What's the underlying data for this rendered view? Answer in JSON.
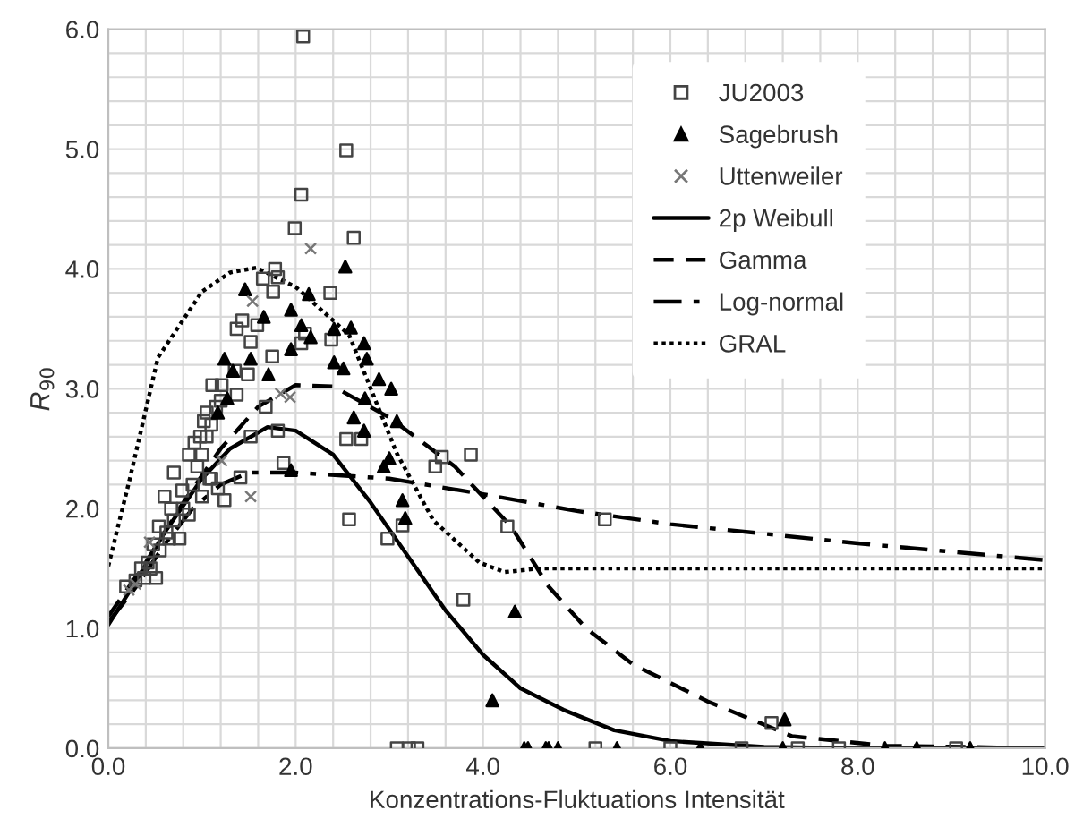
{
  "chart_data": {
    "type": "scatter",
    "xlabel": "Konzentrations-Fluktuations Intensität",
    "ylabel": "R$_{90}$",
    "xlim": [
      0,
      10
    ],
    "ylim": [
      0,
      6
    ],
    "xticks": [
      {
        "value": 0,
        "label": "0.0"
      },
      {
        "value": 0.4,
        "label": null
      },
      {
        "value": 0.8,
        "label": null
      },
      {
        "value": 1.2,
        "label": null
      },
      {
        "value": 1.6,
        "label": null
      },
      {
        "value": 2,
        "label": "2.0"
      },
      {
        "value": 2.4,
        "label": null
      },
      {
        "value": 2.8,
        "label": null
      },
      {
        "value": 3.2,
        "label": null
      },
      {
        "value": 3.6,
        "label": null
      },
      {
        "value": 4,
        "label": "4.0"
      },
      {
        "value": 4.4,
        "label": null
      },
      {
        "value": 4.8,
        "label": null
      },
      {
        "value": 5.2,
        "label": null
      },
      {
        "value": 5.6,
        "label": null
      },
      {
        "value": 6,
        "label": "6.0"
      },
      {
        "value": 6.4,
        "label": null
      },
      {
        "value": 6.8,
        "label": null
      },
      {
        "value": 7.2,
        "label": null
      },
      {
        "value": 7.6,
        "label": null
      },
      {
        "value": 8,
        "label": "8.0"
      },
      {
        "value": 8.4,
        "label": null
      },
      {
        "value": 8.8,
        "label": null
      },
      {
        "value": 9.2,
        "label": null
      },
      {
        "value": 9.6,
        "label": null
      },
      {
        "value": 10,
        "label": "10.0"
      }
    ],
    "yticks": [
      {
        "value": 0,
        "label": "0.0"
      },
      {
        "value": 0.2,
        "label": null
      },
      {
        "value": 0.4,
        "label": null
      },
      {
        "value": 0.6,
        "label": null
      },
      {
        "value": 0.8,
        "label": null
      },
      {
        "value": 1,
        "label": "1.0"
      },
      {
        "value": 1.2,
        "label": null
      },
      {
        "value": 1.4,
        "label": null
      },
      {
        "value": 1.6,
        "label": null
      },
      {
        "value": 1.8,
        "label": null
      },
      {
        "value": 2,
        "label": "2.0"
      },
      {
        "value": 2.2,
        "label": null
      },
      {
        "value": 2.4,
        "label": null
      },
      {
        "value": 2.6,
        "label": null
      },
      {
        "value": 2.8,
        "label": null
      },
      {
        "value": 3,
        "label": "3.0"
      },
      {
        "value": 3.2,
        "label": null
      },
      {
        "value": 3.4,
        "label": null
      },
      {
        "value": 3.6,
        "label": null
      },
      {
        "value": 3.8,
        "label": null
      },
      {
        "value": 4,
        "label": "4.0"
      },
      {
        "value": 4.2,
        "label": null
      },
      {
        "value": 4.4,
        "label": null
      },
      {
        "value": 4.6,
        "label": null
      },
      {
        "value": 4.8,
        "label": null
      },
      {
        "value": 5,
        "label": "5.0"
      },
      {
        "value": 5.2,
        "label": null
      },
      {
        "value": 5.4,
        "label": null
      },
      {
        "value": 5.6,
        "label": null
      },
      {
        "value": 5.8,
        "label": null
      },
      {
        "value": 6,
        "label": "6.0"
      }
    ],
    "grid": true,
    "legend": "top right",
    "series": [
      {
        "name": "JU2003",
        "marker": "square",
        "color": "#444444",
        "x": [
          2.08,
          2.54,
          2.06,
          1.99,
          2.62,
          1.78,
          1.81,
          1.76,
          1.65,
          2.37,
          1.59,
          1.43,
          1.37,
          1.75,
          1.52,
          1.49,
          1.35,
          2.1,
          2.38,
          2.06,
          1.11,
          1.21,
          1.37,
          1.05,
          1.02,
          1.68,
          1.52,
          1.81,
          2.54,
          2.7,
          1.87,
          1.41,
          1.24,
          1.17,
          1.08,
          0.7,
          0.92,
          0.86,
          0.98,
          3.56,
          3.87,
          3.49,
          4.26,
          2.57,
          2.98,
          3.14,
          3.79,
          3.08,
          3.21,
          3.3,
          0.76,
          0.67,
          0.54,
          0.48,
          0.38,
          0.51,
          0.29,
          0.19,
          0.86,
          0.79,
          0.6,
          0.35,
          0.42,
          0.55,
          0.62,
          0.7,
          0.8,
          0.9,
          0.95,
          1.0,
          1.05,
          1.1,
          1.15,
          1.2,
          1.0,
          1.1,
          0.45,
          0.65,
          5.3,
          7.08,
          5.2,
          6.0,
          6.76,
          7.36,
          7.8,
          9.05
        ],
        "values": [
          5.94,
          4.99,
          4.62,
          4.34,
          4.26,
          4.0,
          3.93,
          3.81,
          3.92,
          3.8,
          3.53,
          3.57,
          3.5,
          3.27,
          3.39,
          3.12,
          3.15,
          3.46,
          3.41,
          3.38,
          3.03,
          3.03,
          2.95,
          2.8,
          2.73,
          2.85,
          2.6,
          2.65,
          2.58,
          2.58,
          2.38,
          2.26,
          2.07,
          2.17,
          2.25,
          2.3,
          2.55,
          2.45,
          2.6,
          2.43,
          2.45,
          2.35,
          1.85,
          1.91,
          1.75,
          1.86,
          1.24,
          0,
          0,
          0,
          1.75,
          2.0,
          1.85,
          1.7,
          1.42,
          1.42,
          1.4,
          1.35,
          1.95,
          2.15,
          2.1,
          1.5,
          1.55,
          1.65,
          1.8,
          1.9,
          2.0,
          2.2,
          2.35,
          2.45,
          2.6,
          2.7,
          2.85,
          2.9,
          2.1,
          2.25,
          1.5,
          1.75,
          1.91,
          0.21,
          0,
          0,
          0,
          0,
          0,
          0
        ]
      },
      {
        "name": "Sagebrush",
        "marker": "triangle",
        "color": "#000000",
        "x": [
          2.53,
          1.46,
          1.66,
          2.14,
          1.95,
          2.06,
          2.16,
          2.41,
          2.59,
          2.73,
          2.76,
          1.24,
          1.33,
          1.52,
          1.95,
          2.41,
          2.51,
          2.89,
          3.02,
          2.74,
          1.71,
          1.17,
          1.27,
          2.62,
          3.08,
          2.73,
          1.95,
          3.0,
          2.94,
          3.14,
          3.17,
          4.34,
          4.1,
          4.44,
          4.67,
          4.48,
          4.7,
          4.8,
          5.43,
          6.32,
          7.2,
          8.29,
          8.63,
          9.2,
          7.22
        ],
        "values": [
          4.02,
          3.83,
          3.6,
          3.79,
          3.66,
          3.53,
          3.43,
          3.5,
          3.51,
          3.38,
          3.25,
          3.25,
          3.15,
          3.25,
          3.33,
          3.22,
          3.17,
          3.08,
          3.0,
          2.92,
          3.12,
          2.8,
          2.92,
          2.76,
          2.73,
          2.65,
          2.32,
          2.42,
          2.35,
          2.07,
          1.92,
          1.14,
          0.4,
          0,
          0,
          0,
          0,
          0,
          0,
          0,
          0,
          0,
          0,
          0,
          0.24
        ]
      },
      {
        "name": "Uttenweiler",
        "marker": "cross",
        "color": "#777777",
        "x": [
          2.16,
          1.54,
          1.94,
          1.21,
          1.52,
          0.29,
          0.22,
          0.44,
          1.84
        ],
        "values": [
          4.17,
          3.73,
          2.93,
          2.4,
          2.1,
          1.37,
          1.32,
          1.72,
          2.96
        ]
      },
      {
        "name": "2p Weibull",
        "type": "line",
        "line_style": "solid",
        "color": "#000000",
        "x": [
          0,
          0.3,
          0.6,
          1.0,
          1.3,
          1.7,
          2.0,
          2.4,
          2.8,
          3.2,
          3.6,
          4.0,
          4.4,
          4.86,
          5.4,
          6.0,
          7.0,
          8.0,
          10.0
        ],
        "values": [
          1.03,
          1.4,
          1.8,
          2.25,
          2.5,
          2.68,
          2.65,
          2.45,
          2.05,
          1.6,
          1.15,
          0.78,
          0.5,
          0.32,
          0.15,
          0.06,
          0.01,
          0,
          0
        ]
      },
      {
        "name": "Gamma",
        "type": "line",
        "line_style": "dashed",
        "color": "#000000",
        "x": [
          0,
          0.4,
          0.8,
          1.2,
          1.6,
          2.0,
          2.4,
          3.0,
          3.7,
          4.3,
          4.7,
          5.1,
          5.6,
          6.4,
          7.3,
          8.3,
          10.0
        ],
        "values": [
          1.1,
          1.55,
          2.05,
          2.5,
          2.85,
          3.03,
          3.02,
          2.76,
          2.35,
          1.85,
          1.35,
          1.0,
          0.7,
          0.39,
          0.1,
          0.02,
          0
        ]
      },
      {
        "name": "Log-normal",
        "type": "line",
        "line_style": "dashdot",
        "color": "#000000",
        "x": [
          0,
          0.3,
          0.6,
          0.9,
          1.2,
          1.5,
          2.0,
          3.0,
          4.0,
          5.0,
          6.0,
          7.0,
          8.0,
          9.0,
          10.0
        ],
        "values": [
          1.05,
          1.35,
          1.7,
          2.0,
          2.2,
          2.3,
          2.3,
          2.25,
          2.12,
          1.98,
          1.87,
          1.79,
          1.71,
          1.64,
          1.57
        ]
      },
      {
        "name": "GRAL",
        "type": "line",
        "line_style": "dotted",
        "color": "#000000",
        "x": [
          0,
          0.23,
          0.53,
          1.0,
          1.3,
          1.58,
          2.0,
          2.57,
          3.08,
          3.47,
          3.96,
          4.23,
          4.6,
          10.0
        ],
        "values": [
          1.52,
          2.25,
          3.26,
          3.81,
          3.97,
          4.01,
          3.85,
          3.45,
          2.46,
          1.9,
          1.55,
          1.47,
          1.5,
          1.5
        ]
      }
    ]
  }
}
